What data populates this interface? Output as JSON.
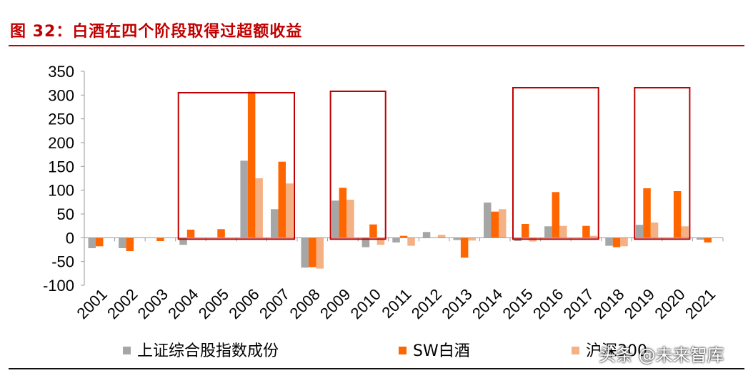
{
  "figure": {
    "title": "图 32：白酒在四个阶段取得过超额收益",
    "watermark": "头条 @未来智库"
  },
  "chart_data": {
    "type": "bar",
    "title": "",
    "xlabel": "",
    "ylabel": "",
    "ylim": [
      -100,
      350
    ],
    "yticks": [
      -100,
      -50,
      0,
      50,
      100,
      150,
      200,
      250,
      300,
      350
    ],
    "categories": [
      "2001",
      "2002",
      "2003",
      "2004",
      "2005",
      "2006",
      "2007",
      "2008",
      "2009",
      "2010",
      "2011",
      "2012",
      "2013",
      "2014",
      "2015",
      "2016",
      "2017",
      "2018",
      "2019",
      "2020",
      "2021"
    ],
    "series": [
      {
        "name": "上证综合股指数成份",
        "color": "#a6a6a6",
        "values": [
          -22,
          -22,
          0,
          -15,
          0,
          162,
          60,
          -63,
          78,
          -20,
          -10,
          12,
          -5,
          74,
          -7,
          24,
          0,
          -17,
          27,
          0,
          -4
        ]
      },
      {
        "name": "SW白酒",
        "color": "#ff6600",
        "values": [
          -18,
          -28,
          -7,
          17,
          18,
          307,
          160,
          -62,
          105,
          28,
          4,
          0,
          -42,
          55,
          29,
          96,
          25,
          -20,
          104,
          98,
          -10
        ]
      },
      {
        "name": "沪深300",
        "color": "#f4b183",
        "values": [
          0,
          0,
          0,
          0,
          0,
          125,
          114,
          -65,
          80,
          -15,
          -17,
          6,
          -6,
          60,
          -8,
          25,
          4,
          -18,
          32,
          24,
          0
        ]
      }
    ],
    "highlight_periods": [
      [
        "2004",
        "2007"
      ],
      [
        "2009",
        "2010"
      ],
      [
        "2015",
        "2017"
      ],
      [
        "2019",
        "2020"
      ]
    ],
    "legend_position": "bottom"
  }
}
